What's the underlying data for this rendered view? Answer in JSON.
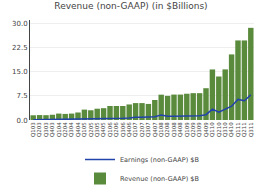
{
  "chart_data": {
    "type": "bar",
    "title": "Revenue (non-GAAP) (in $Billions)",
    "categories": [
      "Q103",
      "Q203",
      "Q303",
      "Q403",
      "Q104",
      "Q204",
      "Q304",
      "Q404",
      "Q105",
      "Q205",
      "Q305",
      "Q405",
      "Q106",
      "Q206",
      "Q306",
      "Q406",
      "Q107",
      "Q207",
      "Q307",
      "Q407",
      "Q108",
      "Q208",
      "Q308",
      "Q408",
      "Q109",
      "Q209",
      "Q309",
      "Q409",
      "Q110",
      "Q210",
      "Q310",
      "Q410",
      "Q111",
      "Q211",
      "Q311"
    ],
    "series": [
      {
        "name": "Earnings (non-GAAP) $B",
        "type": "line",
        "color": "#2244aa",
        "values": [
          0.07,
          0.09,
          0.09,
          0.1,
          0.16,
          0.16,
          0.17,
          0.2,
          0.3,
          0.34,
          0.38,
          0.46,
          0.47,
          0.47,
          0.54,
          0.62,
          0.87,
          0.87,
          0.92,
          1.01,
          1.58,
          1.16,
          1.19,
          1.26,
          1.33,
          1.33,
          1.33,
          1.67,
          3.38,
          2.45,
          3.51,
          4.31,
          6.4,
          5.99,
          7.79
        ]
      },
      {
        "name": "Revenue (non-GAAP) $B",
        "type": "bar",
        "color": "#5a8a3c",
        "values": [
          1.48,
          1.55,
          1.52,
          1.65,
          2.01,
          1.91,
          2.01,
          2.35,
          3.24,
          3.04,
          3.52,
          3.68,
          4.36,
          4.36,
          4.37,
          4.84,
          5.26,
          5.26,
          5.0,
          6.22,
          7.87,
          7.51,
          7.9,
          7.9,
          8.16,
          8.34,
          8.34,
          9.87,
          15.68,
          13.5,
          15.7,
          20.34,
          24.67,
          24.67,
          28.57
        ]
      }
    ],
    "ylim": [
      0,
      31
    ],
    "yticks": [
      {
        "value": 0,
        "label": "0.0"
      },
      7.5,
      {
        "value": 15,
        "label": "15.0"
      },
      22.5,
      {
        "value": 30,
        "label": "30.0"
      }
    ],
    "grid": true
  }
}
